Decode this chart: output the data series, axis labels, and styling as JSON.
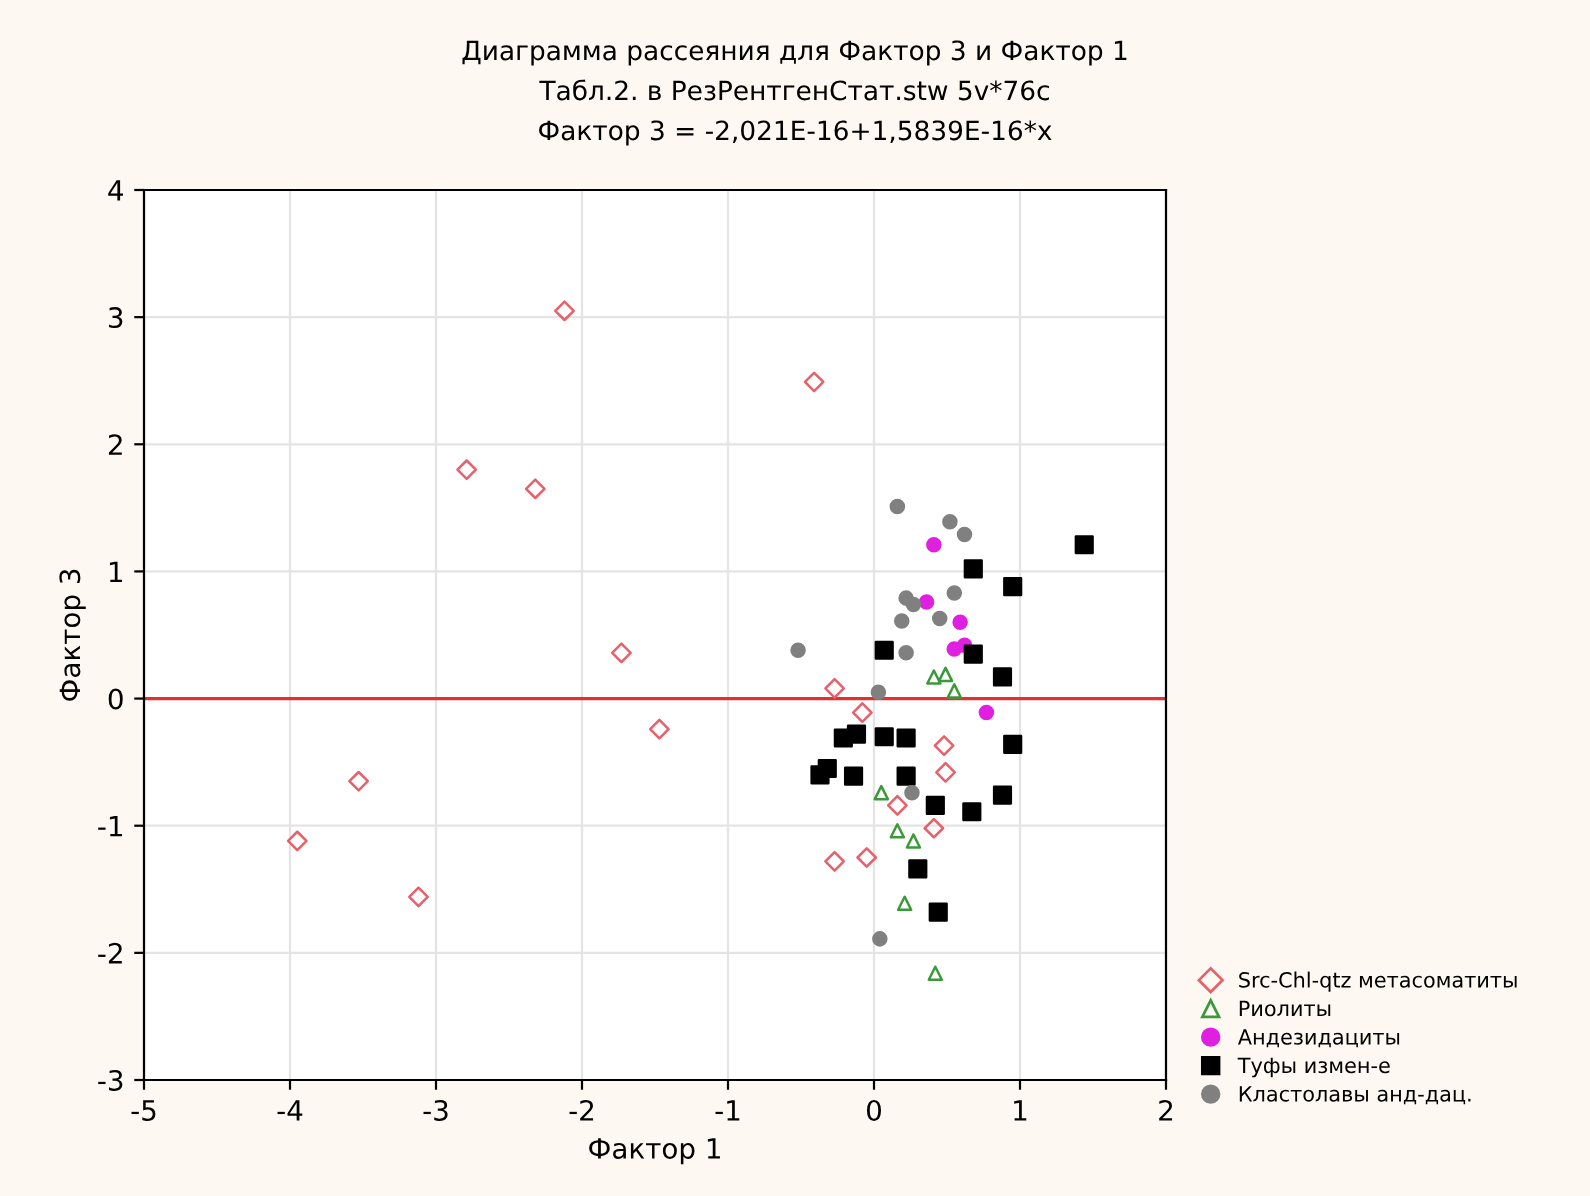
{
  "chart_data": {
    "type": "scatter",
    "title": "Диаграмма рассеяния для Фактор 3 и Фактор 1",
    "subtitle": "Табл.2. в РезРентгенСтат.stw 5v*76c",
    "annotations": [
      "Фактор 3 = -2,021E-16+1,5839E-16*x"
    ],
    "xlabel": "Фактор 1",
    "ylabel": "Фактор 3",
    "xlim": [
      -5,
      2
    ],
    "ylim": [
      -3,
      4
    ],
    "xticks": [
      -5,
      -4,
      -3,
      -2,
      -1,
      0,
      1,
      2
    ],
    "yticks": [
      -3,
      -2,
      -1,
      0,
      1,
      2,
      3,
      4
    ],
    "grid": true,
    "legend": "bottom right",
    "series": [
      {
        "name": "Src-Chl-qtz метасоматиты",
        "color": "#e8606a",
        "marker": "diamond",
        "x": [
          -3.95,
          -3.53,
          -3.12,
          -2.79,
          -2.32,
          -2.12,
          -1.73,
          -1.47,
          -0.41,
          -0.27,
          -0.08,
          -0.27,
          -0.05,
          0.16,
          0.48,
          0.49,
          0.41
        ],
        "values": [
          -1.12,
          -0.65,
          -1.56,
          1.8,
          1.65,
          3.05,
          0.36,
          -0.24,
          2.49,
          0.08,
          -0.11,
          -1.28,
          -1.25,
          -0.84,
          -0.37,
          -0.58,
          -1.02
        ]
      },
      {
        "name": "Риолиты",
        "color": "#3a9a3a",
        "marker": "triangle",
        "x": [
          0.41,
          0.49,
          0.55,
          0.05,
          0.16,
          0.27,
          0.21,
          0.42
        ],
        "values": [
          0.17,
          0.19,
          0.06,
          -0.74,
          -1.04,
          -1.12,
          -1.61,
          -2.16
        ]
      },
      {
        "name": "Андезидациты",
        "color": "#e020e0",
        "marker": "circle",
        "x": [
          0.41,
          0.36,
          0.59,
          0.55,
          0.62,
          0.77
        ],
        "values": [
          1.21,
          0.76,
          0.6,
          0.39,
          0.42,
          -0.11
        ]
      },
      {
        "name": "Туфы измен-е",
        "color": "#000000",
        "marker": "square",
        "x": [
          1.44,
          0.68,
          0.95,
          0.07,
          0.68,
          0.88,
          -0.21,
          -0.12,
          0.07,
          0.22,
          0.95,
          -0.37,
          -0.32,
          -0.14,
          0.22,
          0.42,
          0.67,
          0.88,
          0.3,
          0.44
        ],
        "values": [
          1.21,
          1.02,
          0.88,
          0.38,
          0.35,
          0.17,
          -0.31,
          -0.28,
          -0.3,
          -0.31,
          -0.36,
          -0.6,
          -0.55,
          -0.61,
          -0.61,
          -0.84,
          -0.89,
          -0.76,
          -1.34,
          -1.68
        ]
      },
      {
        "name": "Кластолавы анд-дац.",
        "color": "#808080",
        "marker": "circle",
        "x": [
          0.16,
          0.52,
          0.62,
          0.22,
          0.27,
          0.19,
          0.55,
          0.45,
          -0.52,
          0.22,
          0.03,
          0.26,
          0.04
        ],
        "values": [
          1.51,
          1.39,
          1.29,
          0.79,
          0.74,
          0.61,
          0.83,
          0.63,
          0.38,
          0.36,
          0.05,
          -0.74,
          -1.89
        ]
      },
      {
        "type": "line",
        "color": "#e03030",
        "x": [
          -5,
          2
        ],
        "values": [
          0,
          0
        ],
        "marker": "none"
      }
    ]
  }
}
